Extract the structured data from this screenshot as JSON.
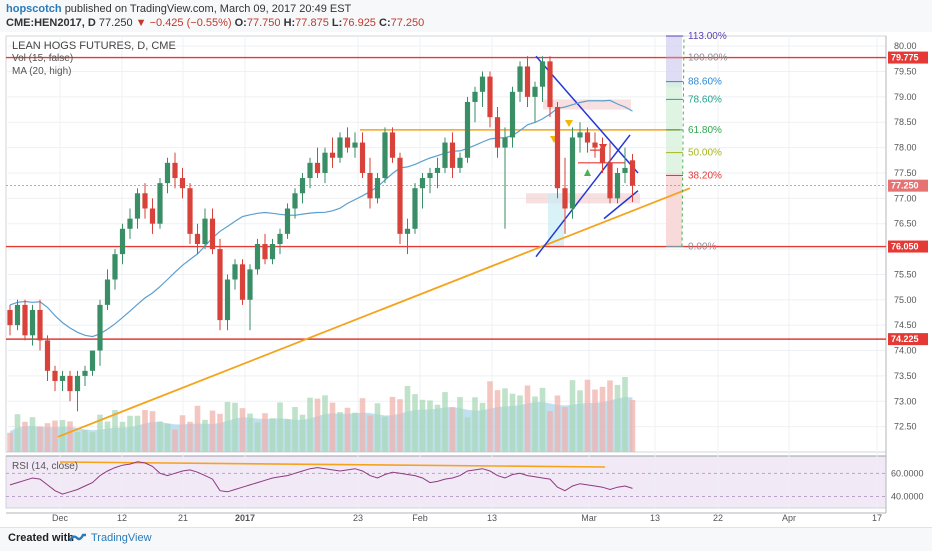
{
  "header": {
    "author": "hopscotch",
    "published_text": "published on TradingView.com, March 09, 2017 20:49 EST",
    "symbol": "CME:HEN2017, D",
    "last": "77.250",
    "change": "−0.425 (−0.55%)",
    "o_label": "O:",
    "o": "77.750",
    "h_label": "H:",
    "h": "77.875",
    "l_label": "L:",
    "l": "76.925",
    "c_label": "C:",
    "c": "77.250"
  },
  "legend": {
    "title": "LEAN HOGS FUTURES, D, CME",
    "vol": "Vol (15, false)",
    "ma": "MA (20, high)",
    "rsi": "RSI (14, close)"
  },
  "footer": {
    "created": "Created with",
    "brand": "TradingView"
  },
  "colors": {
    "up": "#3a8e66",
    "down": "#d9423a",
    "resistance": "#e53935",
    "trend": "#f5a31b",
    "wedge": "#2338d8",
    "ma": "#5b9fcf",
    "rsi": "#8e3b7e"
  },
  "chart_data": [
    {
      "type": "candlestick",
      "title": "LEAN HOGS FUTURES, D, CME",
      "x_tick_labels": [
        "Dec",
        "12",
        "21",
        "2017",
        "23",
        "Feb",
        "13",
        "Mar",
        "13",
        "22",
        "Apr",
        "17"
      ],
      "y_tick_labels": [
        "80.00",
        "79.50",
        "79.00",
        "78.50",
        "78.00",
        "77.50",
        "77.00",
        "76.50",
        "76.00",
        "75.50",
        "75.00",
        "74.50",
        "74.00",
        "73.50",
        "73.00",
        "72.50"
      ],
      "ylim": [
        72.0,
        80.2
      ],
      "candles": [
        [
          74.8,
          74.9,
          74.3,
          74.5
        ],
        [
          74.5,
          75.0,
          74.4,
          74.9
        ],
        [
          74.9,
          75.0,
          74.2,
          74.3
        ],
        [
          74.3,
          74.9,
          74.1,
          74.8
        ],
        [
          74.8,
          75.0,
          74.0,
          74.2
        ],
        [
          74.2,
          74.3,
          73.4,
          73.6
        ],
        [
          73.6,
          73.7,
          73.2,
          73.4
        ],
        [
          73.4,
          73.6,
          73.2,
          73.5
        ],
        [
          73.5,
          73.6,
          73.0,
          73.2
        ],
        [
          73.2,
          73.6,
          72.8,
          73.5
        ],
        [
          73.5,
          73.7,
          73.3,
          73.6
        ],
        [
          73.6,
          74.0,
          73.5,
          74.0
        ],
        [
          74.0,
          75.0,
          73.7,
          74.9
        ],
        [
          74.9,
          75.6,
          74.8,
          75.4
        ],
        [
          75.4,
          76.0,
          75.2,
          75.9
        ],
        [
          75.9,
          76.5,
          75.7,
          76.4
        ],
        [
          76.4,
          76.8,
          76.2,
          76.6
        ],
        [
          76.6,
          77.2,
          76.4,
          77.1
        ],
        [
          77.1,
          77.3,
          76.6,
          76.8
        ],
        [
          76.8,
          77.0,
          76.3,
          76.5
        ],
        [
          76.5,
          77.4,
          76.4,
          77.3
        ],
        [
          77.3,
          77.8,
          77.1,
          77.7
        ],
        [
          77.7,
          77.9,
          77.2,
          77.4
        ],
        [
          77.4,
          77.6,
          77.0,
          77.2
        ],
        [
          77.2,
          77.3,
          76.1,
          76.3
        ],
        [
          76.3,
          76.5,
          75.9,
          76.1
        ],
        [
          76.1,
          76.8,
          76.0,
          76.6
        ],
        [
          76.6,
          76.8,
          75.9,
          76.0
        ],
        [
          76.0,
          76.2,
          74.4,
          74.6
        ],
        [
          74.6,
          75.5,
          74.4,
          75.4
        ],
        [
          75.4,
          75.8,
          75.2,
          75.7
        ],
        [
          75.7,
          75.8,
          74.9,
          75.0
        ],
        [
          75.0,
          75.7,
          74.4,
          75.6
        ],
        [
          75.6,
          76.2,
          75.5,
          76.1
        ],
        [
          76.1,
          76.3,
          75.7,
          75.8
        ],
        [
          75.8,
          76.2,
          75.7,
          76.1
        ],
        [
          76.1,
          76.4,
          75.9,
          76.3
        ],
        [
          76.3,
          76.9,
          76.2,
          76.8
        ],
        [
          76.8,
          77.2,
          76.6,
          77.1
        ],
        [
          77.1,
          77.5,
          76.9,
          77.4
        ],
        [
          77.4,
          77.8,
          77.2,
          77.7
        ],
        [
          77.7,
          78.0,
          77.4,
          77.5
        ],
        [
          77.5,
          78.0,
          77.3,
          77.9
        ],
        [
          77.9,
          78.2,
          77.6,
          77.8
        ],
        [
          77.8,
          78.3,
          77.7,
          78.2
        ],
        [
          78.2,
          78.4,
          77.9,
          78.0
        ],
        [
          78.0,
          78.3,
          77.8,
          78.1
        ],
        [
          78.1,
          78.3,
          77.4,
          77.5
        ],
        [
          77.5,
          77.8,
          76.8,
          77.0
        ],
        [
          77.0,
          77.5,
          76.9,
          77.4
        ],
        [
          77.4,
          78.4,
          77.3,
          78.3
        ],
        [
          78.3,
          78.4,
          77.7,
          77.8
        ],
        [
          77.8,
          77.9,
          76.1,
          76.3
        ],
        [
          76.3,
          76.6,
          75.9,
          76.4
        ],
        [
          76.4,
          77.3,
          76.3,
          77.2
        ],
        [
          77.2,
          77.5,
          76.8,
          77.4
        ],
        [
          77.4,
          77.6,
          77.1,
          77.5
        ],
        [
          77.5,
          77.8,
          77.2,
          77.6
        ],
        [
          77.6,
          78.2,
          77.5,
          78.1
        ],
        [
          78.1,
          78.3,
          77.4,
          77.6
        ],
        [
          77.6,
          77.9,
          77.5,
          77.8
        ],
        [
          77.8,
          79.0,
          77.7,
          78.9
        ],
        [
          78.9,
          79.2,
          78.5,
          79.1
        ],
        [
          79.1,
          79.5,
          78.8,
          79.4
        ],
        [
          79.4,
          79.5,
          78.4,
          78.6
        ],
        [
          78.6,
          78.8,
          77.8,
          78.0
        ],
        [
          78.0,
          78.4,
          76.4,
          78.2
        ],
        [
          78.2,
          79.2,
          78.0,
          79.1
        ],
        [
          79.1,
          79.7,
          78.9,
          79.6
        ],
        [
          79.6,
          79.8,
          78.8,
          79.0
        ],
        [
          79.0,
          79.3,
          78.5,
          79.2
        ],
        [
          79.2,
          79.8,
          78.9,
          79.7
        ],
        [
          79.7,
          79.8,
          78.6,
          78.8
        ],
        [
          78.8,
          78.9,
          77.0,
          77.2
        ],
        [
          77.2,
          77.8,
          76.3,
          76.8
        ],
        [
          76.8,
          78.4,
          76.6,
          78.2
        ],
        [
          78.2,
          78.5,
          77.9,
          78.3
        ],
        [
          78.3,
          78.4,
          77.9,
          78.1
        ],
        [
          78.1,
          78.3,
          77.8,
          78.0
        ],
        [
          78.0,
          78.2,
          77.5,
          77.7
        ],
        [
          77.7,
          78.1,
          76.9,
          77.0
        ],
        [
          77.0,
          77.6,
          76.9,
          77.5
        ],
        [
          77.5,
          78.0,
          77.3,
          77.6
        ],
        [
          77.75,
          77.875,
          76.925,
          77.25
        ]
      ],
      "horizontal_levels": [
        "79.775",
        "76.050",
        "74.225"
      ],
      "last_price_label": "77.250",
      "fibonacci_levels": [
        "113.00%",
        "100.00%",
        "88.60%",
        "78.60%",
        "61.80%",
        "50.00%",
        "38.20%",
        "0.00%"
      ],
      "ma_label": "MA (20, high)",
      "volume_label": "Vol (15, false)"
    },
    {
      "type": "line",
      "title": "RSI (14, close)",
      "y_tick_labels": [
        "60.0000",
        "40.0000"
      ],
      "ylim": [
        30,
        75
      ],
      "values": [
        50,
        52,
        54,
        56,
        55,
        50,
        45,
        42,
        44,
        46,
        49,
        52,
        58,
        62,
        65,
        67,
        68,
        70,
        69,
        66,
        60,
        58,
        60,
        62,
        63,
        61,
        58,
        55,
        45,
        44,
        46,
        48,
        50,
        52,
        54,
        56,
        57,
        58,
        60,
        62,
        64,
        65,
        64,
        63,
        62,
        63,
        64,
        62,
        58,
        56,
        59,
        61,
        60,
        59,
        58,
        56,
        52,
        53,
        55,
        56,
        58,
        62,
        63,
        64,
        62,
        58,
        56,
        59,
        60,
        58,
        57,
        56,
        55,
        48,
        45,
        49,
        51,
        50,
        49,
        48,
        46,
        48,
        49,
        47
      ]
    }
  ]
}
